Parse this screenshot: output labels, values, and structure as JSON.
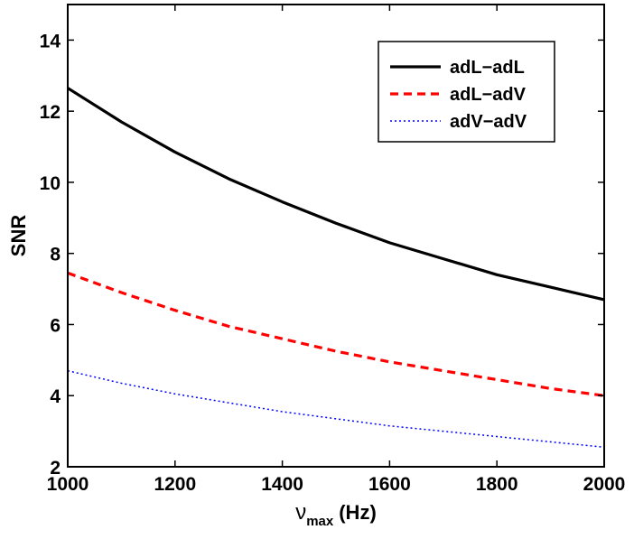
{
  "chart_data": {
    "type": "line",
    "title": "",
    "xlabel": {
      "symbol": "ν",
      "subscript": "max",
      "unit": "(Hz)"
    },
    "ylabel": "SNR",
    "xlim": [
      1000,
      2000
    ],
    "ylim": [
      2,
      15
    ],
    "x_ticks": [
      "1000",
      "1200",
      "1400",
      "1600",
      "1800",
      "2000"
    ],
    "y_ticks": [
      "2",
      "4",
      "6",
      "8",
      "10",
      "12",
      "14"
    ],
    "grid": false,
    "legend_position": "top-right",
    "x": [
      1000,
      1100,
      1200,
      1300,
      1400,
      1500,
      1600,
      1700,
      1800,
      1900,
      2000
    ],
    "series": [
      {
        "name": "adL−adL",
        "color": "#000000",
        "line_style": "solid",
        "values": [
          12.65,
          11.7,
          10.85,
          10.1,
          9.45,
          8.85,
          8.3,
          7.85,
          7.4,
          7.05,
          6.7
        ]
      },
      {
        "name": "adL−adV",
        "color": "#ff0000",
        "line_style": "dashed",
        "values": [
          7.45,
          6.9,
          6.4,
          5.95,
          5.6,
          5.25,
          4.95,
          4.7,
          4.45,
          4.2,
          4.0
        ]
      },
      {
        "name": "adV−adV",
        "color": "#0000ff",
        "line_style": "dotted",
        "values": [
          4.7,
          4.35,
          4.05,
          3.8,
          3.55,
          3.35,
          3.15,
          3.0,
          2.85,
          2.7,
          2.55
        ]
      }
    ]
  }
}
